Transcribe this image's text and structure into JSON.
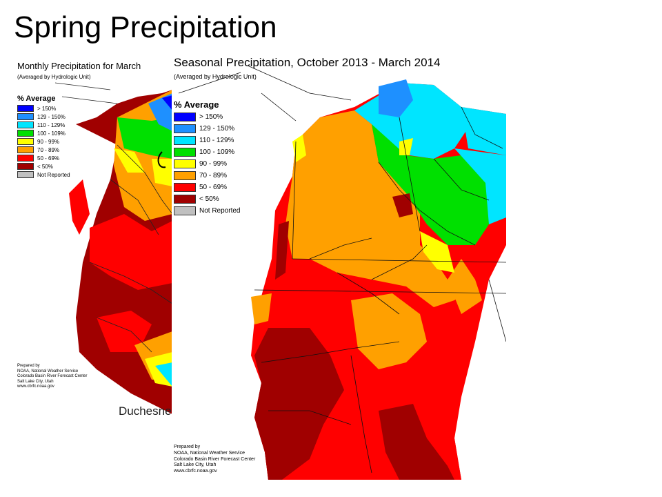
{
  "slide": {
    "title": "Spring Precipitation",
    "caption": "Duchesne"
  },
  "monthly_map": {
    "title": "Monthly Precipitation for March",
    "subtitle": "(Averaged by Hydrologic Unit)",
    "legend_heading": "% Average",
    "credits": [
      "Prepared by",
      "NOAA, National Weather Service",
      "Colorado Basin River Forecast Center",
      "Salt Lake City, Utah",
      "www.cbrfc.noaa.gov"
    ]
  },
  "seasonal_map": {
    "title": "Seasonal Precipitation, October 2013 - March 2014",
    "subtitle": "(Averaged by Hydrologic Unit)",
    "legend_heading": "% Average",
    "credits": [
      "Prepared by",
      "NOAA, National Weather Service",
      "Colorado Basin River Forecast Center",
      "Salt Lake City, Utah",
      "www.cbrfc.noaa.gov"
    ]
  },
  "legend": [
    {
      "label": "> 150%",
      "color": "#0000ff"
    },
    {
      "label": "129 - 150%",
      "color": "#1e90ff"
    },
    {
      "label": "110 - 129%",
      "color": "#00e5ff"
    },
    {
      "label": "100 - 109%",
      "color": "#00e000"
    },
    {
      "label": "90 - 99%",
      "color": "#ffff00"
    },
    {
      "label": "70 - 89%",
      "color": "#ffa000"
    },
    {
      "label": "50 - 69%",
      "color": "#ff0000"
    },
    {
      "label": "< 50%",
      "color": "#a00000"
    },
    {
      "label": "Not Reported",
      "color": "#c0c0c0"
    }
  ]
}
